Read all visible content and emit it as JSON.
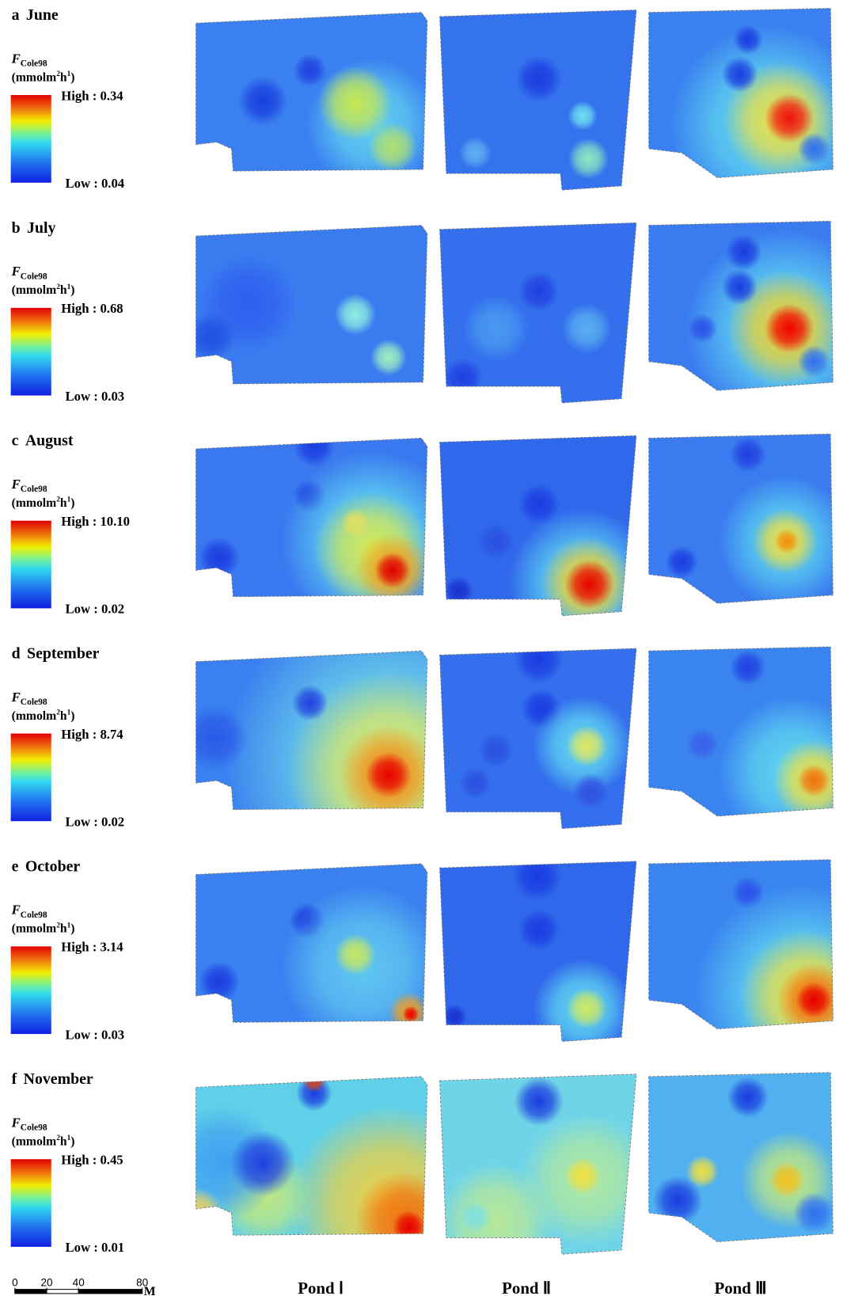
{
  "panels": [
    {
      "letter": "a",
      "month": "June",
      "variable": "F",
      "subscript": "Cole98",
      "unit": {
        "open": "(mmolm",
        "sup1": "2",
        "mid": "h",
        "sup2": "1",
        "close": ")"
      },
      "high": "High : 0.34",
      "low": "Low : 0.04"
    },
    {
      "letter": "b",
      "month": "July",
      "variable": "F",
      "subscript": "Cole98",
      "unit": {
        "open": "(mmolm",
        "sup1": "2",
        "mid": "h",
        "sup2": "1",
        "close": ")"
      },
      "high": "High : 0.68",
      "low": "Low : 0.03"
    },
    {
      "letter": "c",
      "month": "August",
      "variable": "F",
      "subscript": "Cole98",
      "unit": {
        "open": "(mmolm",
        "sup1": "2",
        "mid": "h",
        "sup2": "1",
        "close": ")"
      },
      "high": "High : 10.10",
      "low": "Low : 0.02"
    },
    {
      "letter": "d",
      "month": "September",
      "variable": "F",
      "subscript": "Cole98",
      "unit": {
        "open": "(mmolm",
        "sup1": "2",
        "mid": "h",
        "sup2": "1",
        "close": ")"
      },
      "high": "High : 8.74",
      "low": "Low : 0.02"
    },
    {
      "letter": "e",
      "month": "October",
      "variable": "F",
      "subscript": "Cole98",
      "unit": {
        "open": "(mmolm",
        "sup1": "2",
        "mid": "h",
        "sup2": "1",
        "close": ")"
      },
      "high": "High : 3.14",
      "low": "Low : 0.03"
    },
    {
      "letter": "f",
      "month": "November",
      "variable": "F",
      "subscript": "Cole98",
      "unit": {
        "open": "(mmolm",
        "sup1": "2",
        "mid": "h",
        "sup2": "1",
        "close": ")"
      },
      "high": "High : 0.45",
      "low": "Low : 0.01"
    }
  ],
  "scale_bar": {
    "ticks": [
      0,
      20,
      40,
      80
    ],
    "unit": "M"
  },
  "ponds": [
    "Pond Ⅰ",
    "Pond Ⅱ",
    "Pond Ⅲ"
  ]
}
